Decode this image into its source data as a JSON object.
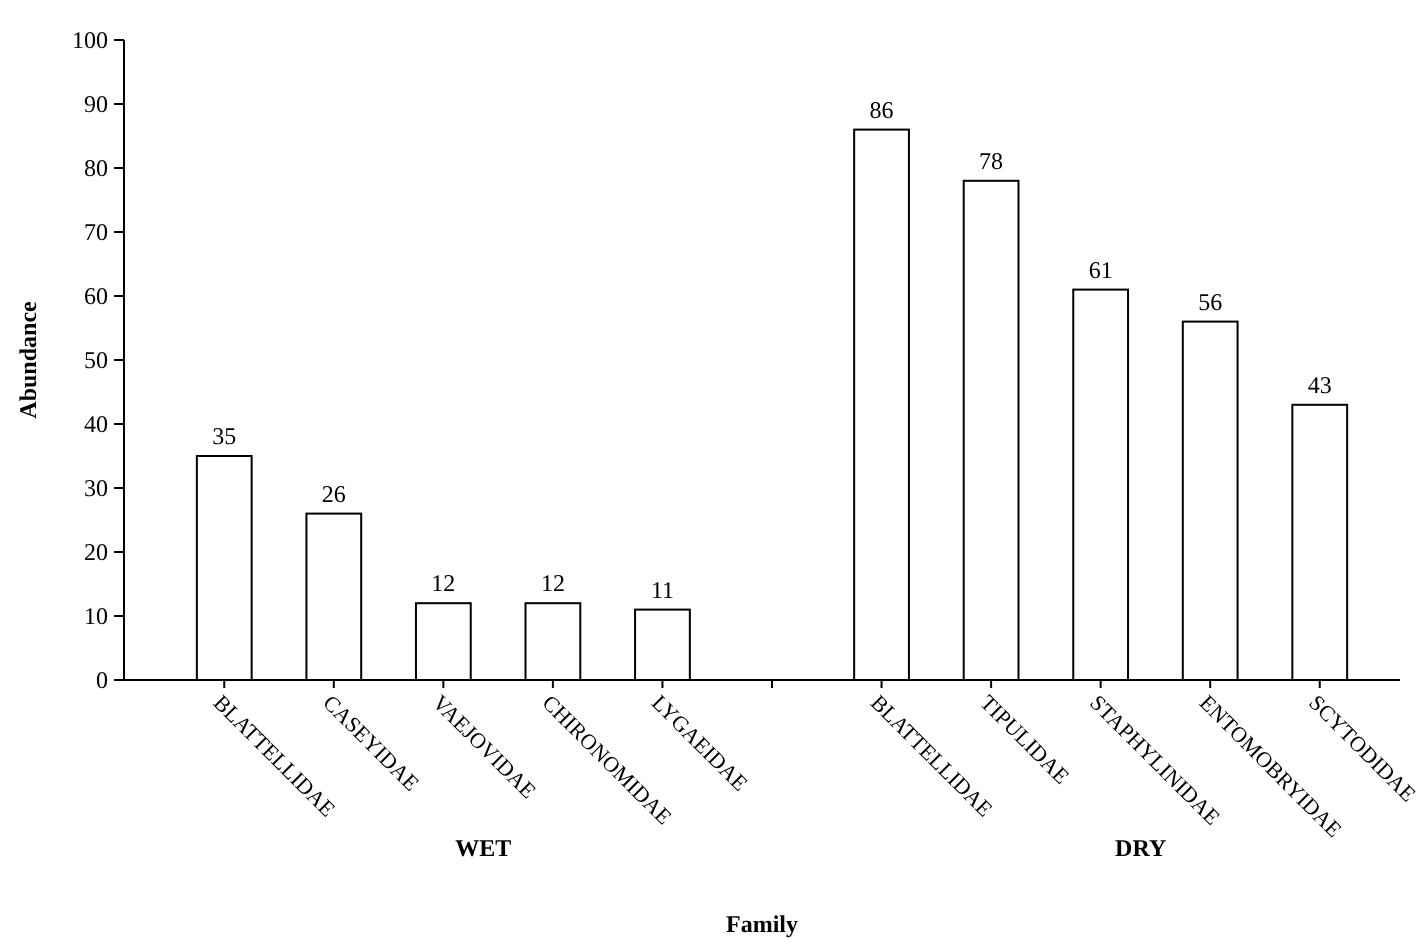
{
  "chart_data": {
    "type": "bar",
    "xlabel": "Family",
    "ylabel": "Abundance",
    "categories": [
      "BLATTELLIDAE",
      "CASEYIDAE",
      "VAEJOVIDAE",
      "CHIRONOMIDAE",
      "LYGAEIDAE",
      null,
      "BLATTELLIDAE",
      "TIPULIDAE",
      "STAPHYLINIDAE",
      "ENTOMOBRYIDAE",
      "SCYTODIDAE"
    ],
    "values": [
      35,
      26,
      12,
      12,
      11,
      null,
      86,
      78,
      61,
      56,
      43
    ],
    "color": "#ffffff",
    "data_labels": true,
    "ylim": [
      0,
      100
    ],
    "yticks": [
      0,
      10,
      20,
      30,
      40,
      50,
      60,
      70,
      80,
      90,
      100
    ],
    "annotations": [
      "WET",
      "DRY"
    ]
  }
}
